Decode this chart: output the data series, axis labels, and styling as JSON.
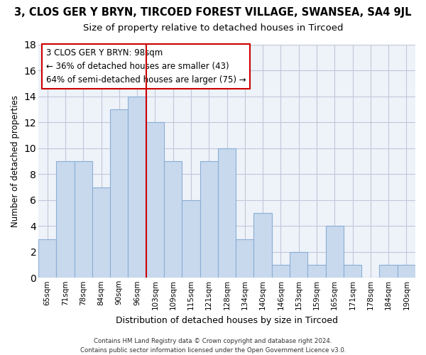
{
  "title": "3, CLOS GER Y BRYN, TIRCOED FOREST VILLAGE, SWANSEA, SA4 9JL",
  "subtitle": "Size of property relative to detached houses in Tircoed",
  "xlabel": "Distribution of detached houses by size in Tircoed",
  "ylabel": "Number of detached properties",
  "categories": [
    "65sqm",
    "71sqm",
    "78sqm",
    "84sqm",
    "90sqm",
    "96sqm",
    "103sqm",
    "109sqm",
    "115sqm",
    "121sqm",
    "128sqm",
    "134sqm",
    "140sqm",
    "146sqm",
    "153sqm",
    "159sqm",
    "165sqm",
    "171sqm",
    "178sqm",
    "184sqm",
    "190sqm"
  ],
  "values": [
    3,
    9,
    9,
    7,
    13,
    14,
    12,
    9,
    6,
    9,
    10,
    3,
    5,
    1,
    2,
    1,
    4,
    1,
    0,
    1,
    1
  ],
  "bar_color": "#c8d9ee",
  "bar_edge_color": "#8aaed4",
  "ylim": [
    0,
    18
  ],
  "yticks": [
    0,
    2,
    4,
    6,
    8,
    10,
    12,
    14,
    16,
    18
  ],
  "vline_color": "#cc0000",
  "annotation_lines": [
    "3 CLOS GER Y BRYN: 98sqm",
    "← 36% of detached houses are smaller (43)",
    "64% of semi-detached houses are larger (75) →"
  ],
  "footer_line1": "Contains HM Land Registry data © Crown copyright and database right 2024.",
  "footer_line2": "Contains public sector information licensed under the Open Government Licence v3.0.",
  "bg_color": "#eef2f9",
  "grid_color": "#c0c8d8"
}
